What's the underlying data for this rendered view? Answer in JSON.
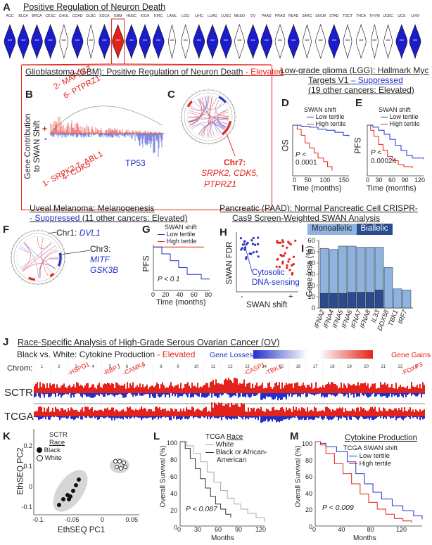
{
  "panelA": {
    "letter": "A",
    "title": "Positive Regulation of Neuron Death",
    "cancers": [
      "ACC",
      "BLCA",
      "BRCA",
      "CESC",
      "CHOL",
      "COAD",
      "DLBC",
      "ESCA",
      "GBM",
      "HNSC",
      "KICH",
      "KIRC",
      "LAML",
      "LGG",
      "LIHC",
      "LUAD",
      "LUSC",
      "MESO",
      "OV",
      "PAAD",
      "PRAD",
      "READ",
      "SARC",
      "SKCM",
      "STAD",
      "TGCT",
      "THCA",
      "THYM",
      "UCEC",
      "UCS",
      "UVM"
    ],
    "state": [
      "b",
      "b",
      "b",
      "b",
      "w",
      "b",
      "w",
      "b",
      "r",
      "b",
      "b",
      "b",
      "w",
      "w",
      "b",
      "b",
      "b",
      "w",
      "b",
      "b",
      "w",
      "b",
      "w",
      "w",
      "b",
      "w",
      "w",
      "w",
      "w",
      "b",
      "b"
    ]
  },
  "gbm": {
    "title": "Glioblastoma (GBM): Positive Regulation of Neuron Death",
    "dash": " - ",
    "state": "Elevated"
  },
  "panelB": {
    "letter": "B",
    "ylabel1": "Gene Contribution",
    "ylabel2": "to SWAN Shift",
    "plus": "+",
    "minus": "-",
    "gene1": "2- MAP2K7",
    "gene2": "6- PTPRZ1",
    "gene3": "1- SRPK2",
    "gene4": "4- CDK5",
    "gene5": "7- ABL1",
    "gene6": "TP53"
  },
  "panelC": {
    "letter": "C",
    "chr": "Chr7:",
    "genes1": "SRPK2, CDK5,",
    "genes2": "PTPRZ1"
  },
  "lgg": {
    "line1": "Low-grade glioma (LGG): Hallmark Myc",
    "line2a": "Targets V1 ",
    "line2b": "– Suppressed",
    "line3": "(19 other cancers: Elevated)"
  },
  "panelD": {
    "letter": "D",
    "legend_title": "SWAN shift",
    "low": "Low tertile",
    "high": "High tertile",
    "ylabel": "OS",
    "p1": "P <",
    "p2": "0.0001",
    "xticks": [
      "0",
      "50",
      "100",
      "150"
    ],
    "xlabel": "Time (months)"
  },
  "panelE": {
    "letter": "E",
    "legend_title": "SWAN shift",
    "low": "Low tertile",
    "high": "High tertile",
    "ylabel": "PFS",
    "p1": "P <",
    "p2": "0.00024",
    "xticks": [
      "0",
      "30",
      "60",
      "90",
      "120"
    ],
    "xlabel": "Time (months)"
  },
  "uvm": {
    "line1": "Uveal Melanoma: Melanogenesis",
    "line2a": "- Suppressed",
    "line2b": " (11 other cancers: Elevated)"
  },
  "panelF": {
    "letter": "F",
    "chr1": "Chr1: ",
    "gene1": "DVL1",
    "chr3": "Chr3:",
    "gene2": "MITF",
    "gene3": "GSK3B"
  },
  "panelG": {
    "letter": "G",
    "legend_title": "SWAN shift",
    "low": "Low tertile",
    "high": "High tertile",
    "ylabel": "PFS",
    "p": "P < 0.1",
    "xticks": [
      "0",
      "20",
      "40",
      "60",
      "80"
    ],
    "xlabel": "Time (months)"
  },
  "paad": {
    "line1": "Pancreatic (PAAD): Normal Pancreatic Cell CRISPR-",
    "line2": "Cas9 Screen-Weighted SWAN Analysis"
  },
  "panelH": {
    "letter": "H",
    "ylabel": "SWAN FDR",
    "xlabel": "SWAN shift",
    "minus": "-",
    "plus": "+",
    "annot1": "Cytosolic",
    "annot2": "DNA-sensing"
  },
  "panelI": {
    "letter": "I",
    "legend_mono": "Monoallelic",
    "legend_bi": "Biallelic",
    "ylabel": "Gene loss (%)",
    "yticks": [
      "0",
      "10",
      "20",
      "30",
      "40",
      "50",
      "60"
    ]
  },
  "chart_data": {
    "type": "bar",
    "categories": [
      "IFNA2",
      "IFNA4",
      "IFNA5",
      "IFNA6",
      "IFNA7",
      "IFNA8",
      "IL33",
      "DDX58",
      "TBK1",
      "IRF7"
    ],
    "series": [
      {
        "name": "Monoallelic",
        "values": [
          40,
          39,
          42,
          41,
          40,
          40,
          38,
          36,
          17,
          16
        ]
      },
      {
        "name": "Biallelic",
        "values": [
          13,
          13,
          13,
          14,
          14,
          14,
          16,
          0,
          0,
          0
        ]
      }
    ],
    "ylabel": "Gene loss (%)",
    "ylim": [
      0,
      60
    ],
    "stacked": true,
    "colors": {
      "Monoallelic": "#8fb3df",
      "Biallelic": "#2a4b8d"
    }
  },
  "panelJ": {
    "letter": "J",
    "title": "Race-Specific Analysis of High-Grade Serous Ovarian Cancer (OV)",
    "sub1": "Black vs. White: Cytokine Production ",
    "sub2": "- Elevated",
    "losses": "Gene Losses",
    "gains": "Gene Gains",
    "chrom": "Chrom:",
    "chroms": [
      "1",
      "2",
      "3",
      "4",
      "5",
      "6",
      "7",
      "8",
      "9",
      "10",
      "11",
      "12",
      "13",
      "14",
      "15",
      "16",
      "17",
      "18",
      "19",
      "20",
      "21",
      "22",
      "X"
    ],
    "genes": [
      "-HSPD1",
      "-RBPJ",
      "-CAMK4",
      "-CASP1",
      "-TBK1",
      "-FOXP3"
    ],
    "row1": "SCTR",
    "row2": "TCGA"
  },
  "panelK": {
    "letter": "K",
    "legend_title": "SCTR",
    "legend_race": "Race",
    "black": "Black",
    "white": "White",
    "ylabel": "EthSEQ PC2",
    "xlabel": "EthSEQ PC1",
    "yticks": [
      "0.2",
      "0.1",
      "0",
      "-0.1"
    ],
    "xticks": [
      "-0.1",
      "-0.05",
      "0",
      "0.05"
    ]
  },
  "panelL": {
    "letter": "L",
    "legend_title": "TCGA ",
    "legend_race": "Race",
    "white": "White",
    "black1": "Black or African-",
    "black2": "American",
    "ylabel": "Overall Survival (%)",
    "yticks": [
      "100",
      "80",
      "60",
      "40",
      "20",
      "0"
    ],
    "xticks": [
      "0",
      "30",
      "60",
      "90",
      "120"
    ],
    "xlabel": "Months",
    "p": "P < 0.087"
  },
  "panelM": {
    "letter": "M",
    "title": "Cytokine Production",
    "legend_title": "TCGA SWAN shift",
    "low": "Low tertile",
    "high": "High tertile",
    "ylabel": "Overall Survival (%)",
    "yticks": [
      "100",
      "80",
      "60",
      "40",
      "20",
      "0"
    ],
    "xticks": [
      "0",
      "40",
      "80",
      "120"
    ],
    "xlabel": "Months",
    "p": "P < 0.009"
  },
  "colors": {
    "red": "#e3231b",
    "blue": "#2230c8",
    "gray": "#999999"
  }
}
